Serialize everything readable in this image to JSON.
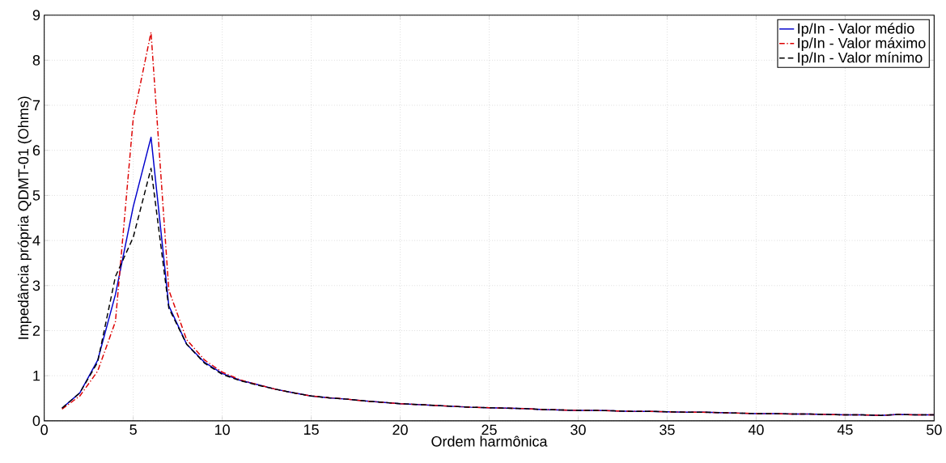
{
  "chart_data": {
    "type": "line",
    "xlabel": "Ordem harmônica",
    "ylabel": "Impedância própria QDMT-01 (Ohms)",
    "x": [
      1,
      2,
      3,
      4,
      5,
      6,
      7,
      8,
      9,
      10,
      11,
      12,
      13,
      14,
      15,
      16,
      17,
      18,
      19,
      20,
      21,
      22,
      23,
      24,
      25,
      26,
      27,
      28,
      29,
      30,
      31,
      32,
      33,
      34,
      35,
      36,
      37,
      38,
      39,
      40,
      41,
      42,
      43,
      44,
      45,
      46,
      47,
      48,
      49,
      50
    ],
    "xlim": [
      0,
      50
    ],
    "ylim": [
      0,
      9
    ],
    "xticks": [
      0,
      5,
      10,
      15,
      20,
      25,
      30,
      35,
      40,
      45,
      50
    ],
    "yticks": [
      0,
      1,
      2,
      3,
      4,
      5,
      6,
      7,
      8,
      9
    ],
    "grid": true,
    "legend": "top right",
    "marker": "none",
    "series": [
      {
        "name": "Ip/In - Valor médio",
        "color": "#0000cc",
        "line_style": "solid",
        "values": [
          0.28,
          0.62,
          1.34,
          2.8,
          4.75,
          6.29,
          2.55,
          1.7,
          1.3,
          1.05,
          0.9,
          0.8,
          0.7,
          0.62,
          0.55,
          0.51,
          0.48,
          0.44,
          0.41,
          0.38,
          0.36,
          0.34,
          0.32,
          0.3,
          0.29,
          0.28,
          0.27,
          0.25,
          0.24,
          0.23,
          0.23,
          0.22,
          0.21,
          0.21,
          0.2,
          0.19,
          0.19,
          0.18,
          0.17,
          0.16,
          0.16,
          0.15,
          0.15,
          0.14,
          0.13,
          0.13,
          0.12,
          0.14,
          0.13,
          0.13
        ]
      },
      {
        "name": "Ip/In - Valor máximo",
        "color": "#dd0000",
        "line_style": "dashdot",
        "values": [
          0.26,
          0.55,
          1.1,
          2.2,
          6.7,
          8.62,
          2.9,
          1.8,
          1.35,
          1.08,
          0.91,
          0.8,
          0.7,
          0.62,
          0.55,
          0.51,
          0.48,
          0.44,
          0.41,
          0.38,
          0.36,
          0.34,
          0.32,
          0.3,
          0.29,
          0.28,
          0.27,
          0.25,
          0.24,
          0.23,
          0.23,
          0.22,
          0.21,
          0.21,
          0.2,
          0.19,
          0.19,
          0.18,
          0.17,
          0.16,
          0.16,
          0.15,
          0.15,
          0.14,
          0.13,
          0.13,
          0.12,
          0.14,
          0.13,
          0.13
        ]
      },
      {
        "name": "Ip/In - Valor mínimo",
        "color": "#000000",
        "line_style": "dashed",
        "values": [
          0.28,
          0.62,
          1.3,
          3.2,
          4.07,
          5.6,
          2.5,
          1.7,
          1.28,
          1.03,
          0.89,
          0.79,
          0.7,
          0.62,
          0.55,
          0.51,
          0.48,
          0.44,
          0.41,
          0.38,
          0.36,
          0.34,
          0.32,
          0.3,
          0.29,
          0.28,
          0.27,
          0.25,
          0.24,
          0.23,
          0.23,
          0.22,
          0.21,
          0.21,
          0.2,
          0.19,
          0.19,
          0.18,
          0.17,
          0.16,
          0.16,
          0.15,
          0.15,
          0.14,
          0.13,
          0.13,
          0.12,
          0.14,
          0.13,
          0.13
        ]
      }
    ]
  }
}
